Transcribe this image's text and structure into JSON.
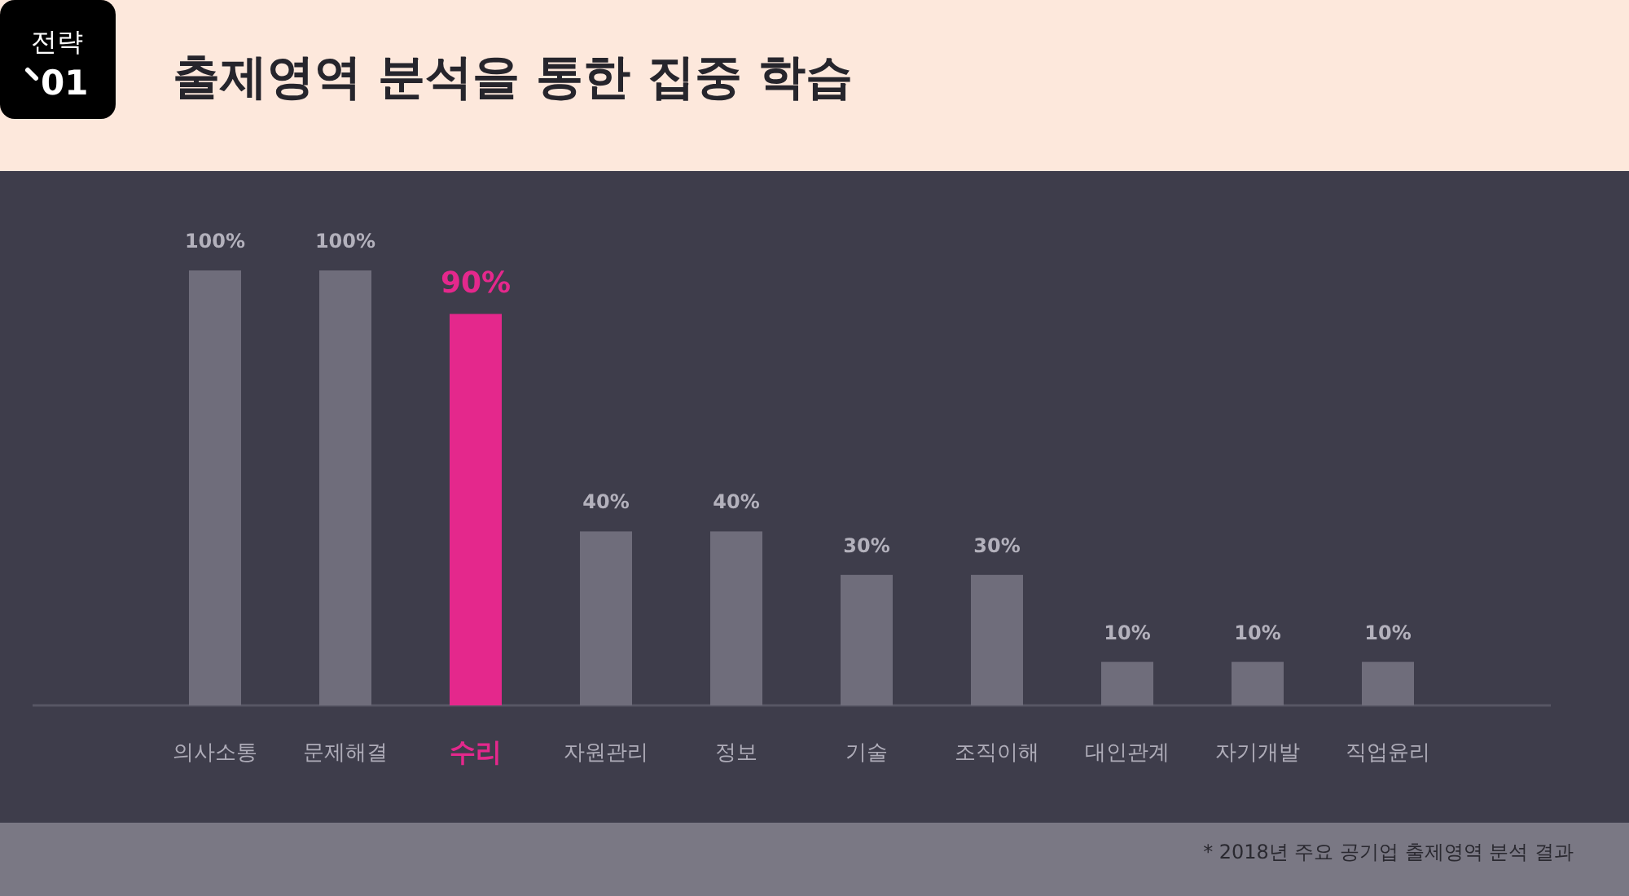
{
  "chart_data": {
    "type": "bar",
    "title": "출제영역 분석을 통한 집중 학습",
    "categories": [
      "의사소통",
      "문제해결",
      "수리",
      "자원관리",
      "정보",
      "기술",
      "조직이해",
      "대인관계",
      "자기개발",
      "직업윤리"
    ],
    "values": [
      100,
      100,
      90,
      40,
      40,
      30,
      30,
      10,
      10,
      10
    ],
    "colors": [
      "#6f6d7b",
      "#6f6d7b",
      "#e4288c",
      "#6f6d7b",
      "#6f6d7b",
      "#6f6d7b",
      "#6f6d7b",
      "#6f6d7b",
      "#6f6d7b",
      "#6f6d7b"
    ],
    "value_labels": [
      "100%",
      "100%",
      "90%",
      "40%",
      "40%",
      "30%",
      "30%",
      "10%",
      "10%",
      "10%"
    ],
    "tick_labels": "x",
    "annotations": [
      "전략",
      "01",
      "* 2018년 주요 공기업 출제영역 분석 결과"
    ]
  }
}
